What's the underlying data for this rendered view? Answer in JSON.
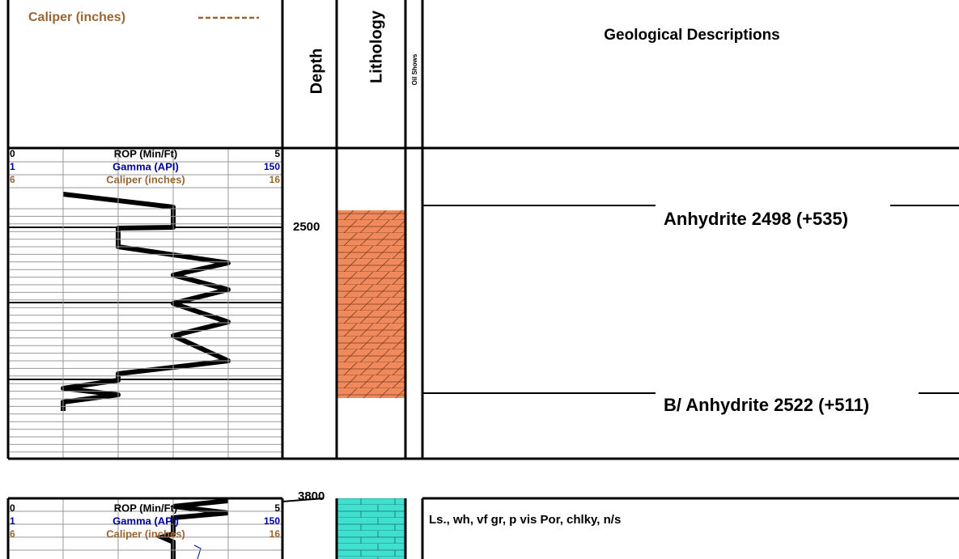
{
  "header": {
    "legend": "Caliper (inches)",
    "columns": {
      "depth": "Depth",
      "lithology": "Lithology",
      "oil_shows": "Oil Shows",
      "descriptions": "Geological Descriptions"
    }
  },
  "sections": [
    {
      "scales": [
        {
          "min": 0,
          "name": "ROP (Min/Ft)",
          "max": 5
        },
        {
          "min": 1,
          "name": "Gamma (API)",
          "max": 150
        },
        {
          "min": 6,
          "name": "Caliper (inches)",
          "max": 16
        }
      ],
      "depth": 2500,
      "tops": [
        "Anhydrite 2498 (+535)",
        "B/ Anhydrite 2522 (+511)"
      ]
    },
    {
      "scales": [
        {
          "min": 0,
          "name": "ROP (Min/Ft)",
          "max": 5
        },
        {
          "min": 1,
          "name": "Gamma (API)",
          "max": 150
        },
        {
          "min": 6,
          "name": "Caliper (inches)",
          "max": 16
        }
      ],
      "depth": 3800,
      "description": "Ls., wh, vf gr, p vis Por, chlky, n/s"
    }
  ]
}
